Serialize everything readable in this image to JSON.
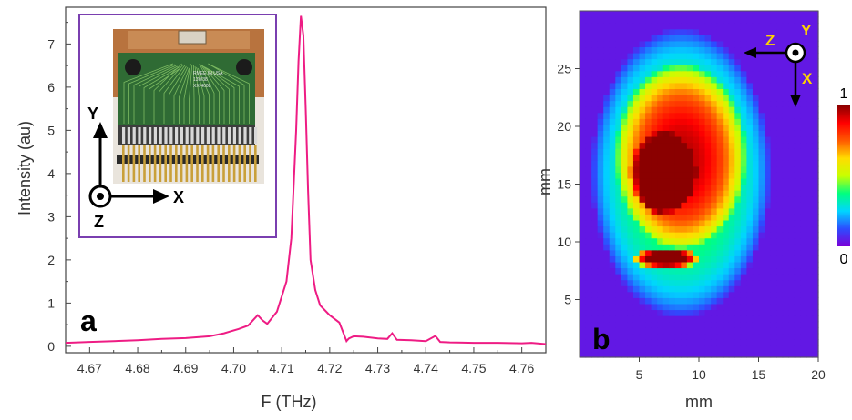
{
  "chart_data": [
    {
      "panel_label": "a",
      "type": "line",
      "xlabel": "F (THz)",
      "ylabel": "Intensity (au)",
      "xlim": [
        4.665,
        4.765
      ],
      "ylim": [
        -0.15,
        7.85
      ],
      "x_ticks": [
        "4.67",
        "4.68",
        "4.69",
        "4.70",
        "4.71",
        "4.72",
        "4.73",
        "4.74",
        "4.75",
        "4.76"
      ],
      "y_ticks": [
        "0",
        "1",
        "2",
        "3",
        "4",
        "5",
        "6",
        "7"
      ],
      "line_color": "#ee1c84",
      "series": [
        {
          "x": [
            4.665,
            4.67,
            4.675,
            4.68,
            4.685,
            4.69,
            4.695,
            4.698,
            4.701,
            4.703,
            4.705,
            4.706,
            4.707,
            4.709,
            4.711,
            4.712,
            4.713,
            4.7135,
            4.714,
            4.7145,
            4.715,
            4.7155,
            4.716,
            4.717,
            4.718,
            4.72,
            4.722,
            4.7235,
            4.724,
            4.725,
            4.727,
            4.73,
            4.732,
            4.733,
            4.734,
            4.737,
            4.74,
            4.742,
            4.743,
            4.745,
            4.75,
            4.755,
            4.76,
            4.762,
            4.765
          ],
          "y": [
            0.08,
            0.1,
            0.12,
            0.14,
            0.17,
            0.19,
            0.23,
            0.3,
            0.4,
            0.48,
            0.72,
            0.6,
            0.52,
            0.8,
            1.5,
            2.5,
            5.0,
            6.6,
            7.65,
            7.2,
            5.5,
            3.6,
            2.0,
            1.3,
            0.95,
            0.72,
            0.55,
            0.12,
            0.18,
            0.23,
            0.22,
            0.18,
            0.17,
            0.3,
            0.15,
            0.14,
            0.12,
            0.24,
            0.1,
            0.09,
            0.08,
            0.08,
            0.07,
            0.08,
            0.05
          ]
        }
      ],
      "inset": {
        "border_color": "#7a3fb0",
        "chip_text": [
          "RMEE IN USA",
          "13W38",
          "XX-4608"
        ],
        "axes": [
          {
            "label": "Y",
            "direction": "up"
          },
          {
            "label": "X",
            "direction": "right"
          },
          {
            "label": "Z",
            "direction": "out-of-page"
          }
        ]
      }
    },
    {
      "panel_label": "b",
      "type": "heatmap",
      "xlabel": "mm",
      "ylabel": "mm",
      "xlim": [
        0,
        20
      ],
      "ylim": [
        0,
        30
      ],
      "x_ticks": [
        "5",
        "10",
        "15",
        "20"
      ],
      "y_ticks": [
        "5",
        "10",
        "15",
        "20",
        "25"
      ],
      "colorbar": {
        "max_label": "1",
        "min_label": "0",
        "colors": [
          "#7b00d8",
          "#2d4cff",
          "#00d5ff",
          "#00ff80",
          "#c8ff00",
          "#ffdc00",
          "#ff5a00",
          "#ff0000",
          "#8b0000"
        ]
      },
      "background_level": 0.04,
      "intensity_regions": [
        {
          "cx": 8.5,
          "cy": 16.0,
          "rx": 7.5,
          "ry": 12.5,
          "peak": 0.42
        },
        {
          "cx": 8.5,
          "cy": 17.5,
          "rx": 5.5,
          "ry": 8.0,
          "peak": 0.5
        },
        {
          "cx": 7.0,
          "cy": 16.0,
          "rx": 2.8,
          "ry": 3.6,
          "peak": 0.45
        },
        {
          "cx": 6.5,
          "cy": 14.5,
          "rx": 1.5,
          "ry": 2.0,
          "peak": 0.26
        },
        {
          "cx": 7.2,
          "cy": 8.6,
          "rx": 2.8,
          "ry": 0.9,
          "peak": 0.85
        }
      ],
      "axes_legend": [
        {
          "label": "Z",
          "direction": "left"
        },
        {
          "label": "Y",
          "direction": "out-of-page"
        },
        {
          "label": "X",
          "direction": "down"
        }
      ]
    }
  ]
}
